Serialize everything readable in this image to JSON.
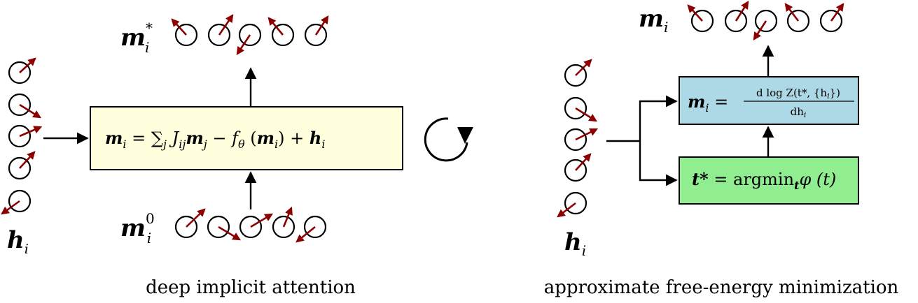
{
  "left_panel": {
    "caption": "deep implicit attention",
    "input_label": {
      "main": "h",
      "sub": "i"
    },
    "output_label": {
      "main": "m",
      "sub": "i",
      "sup": "*"
    },
    "initial_label": {
      "main": "m",
      "sub": "i",
      "sup": "0"
    },
    "box_equation": {
      "lhs": "m",
      "lhs_sub": "i",
      "eq": " = ",
      "sum": "∑",
      "sum_sub": "j",
      "J": " J",
      "J_sub": "ij",
      "m2": "m",
      "m2_sub": "j",
      "minus": " − f",
      "f_sub": "θ",
      "arg_open": " (",
      "arg_m": "m",
      "arg_sub": "i",
      "arg_close": ")",
      "plus": " + ",
      "h": "h",
      "h_sub": "i"
    },
    "box_color": "#ffffde"
  },
  "right_panel": {
    "caption": "approximate free-energy minimization",
    "input_label": {
      "main": "h",
      "sub": "i"
    },
    "output_label": {
      "main": "m",
      "sub": "i"
    },
    "top_box": {
      "lhs": "m",
      "lhs_sub": "i",
      "eq": " = ",
      "numerator": "d log Z(t*, {h",
      "numerator_sub": "i",
      "numerator_end": "})",
      "denominator": "dh",
      "denominator_sub": "i",
      "color": "#add8e6"
    },
    "bottom_box": {
      "lhs": "t*",
      "eq": " = ",
      "op": "argmin",
      "op_sub": "t",
      "phi": "φ",
      "arg": " (t)",
      "color": "#90ee90"
    }
  },
  "spin_color": "#8b0000"
}
